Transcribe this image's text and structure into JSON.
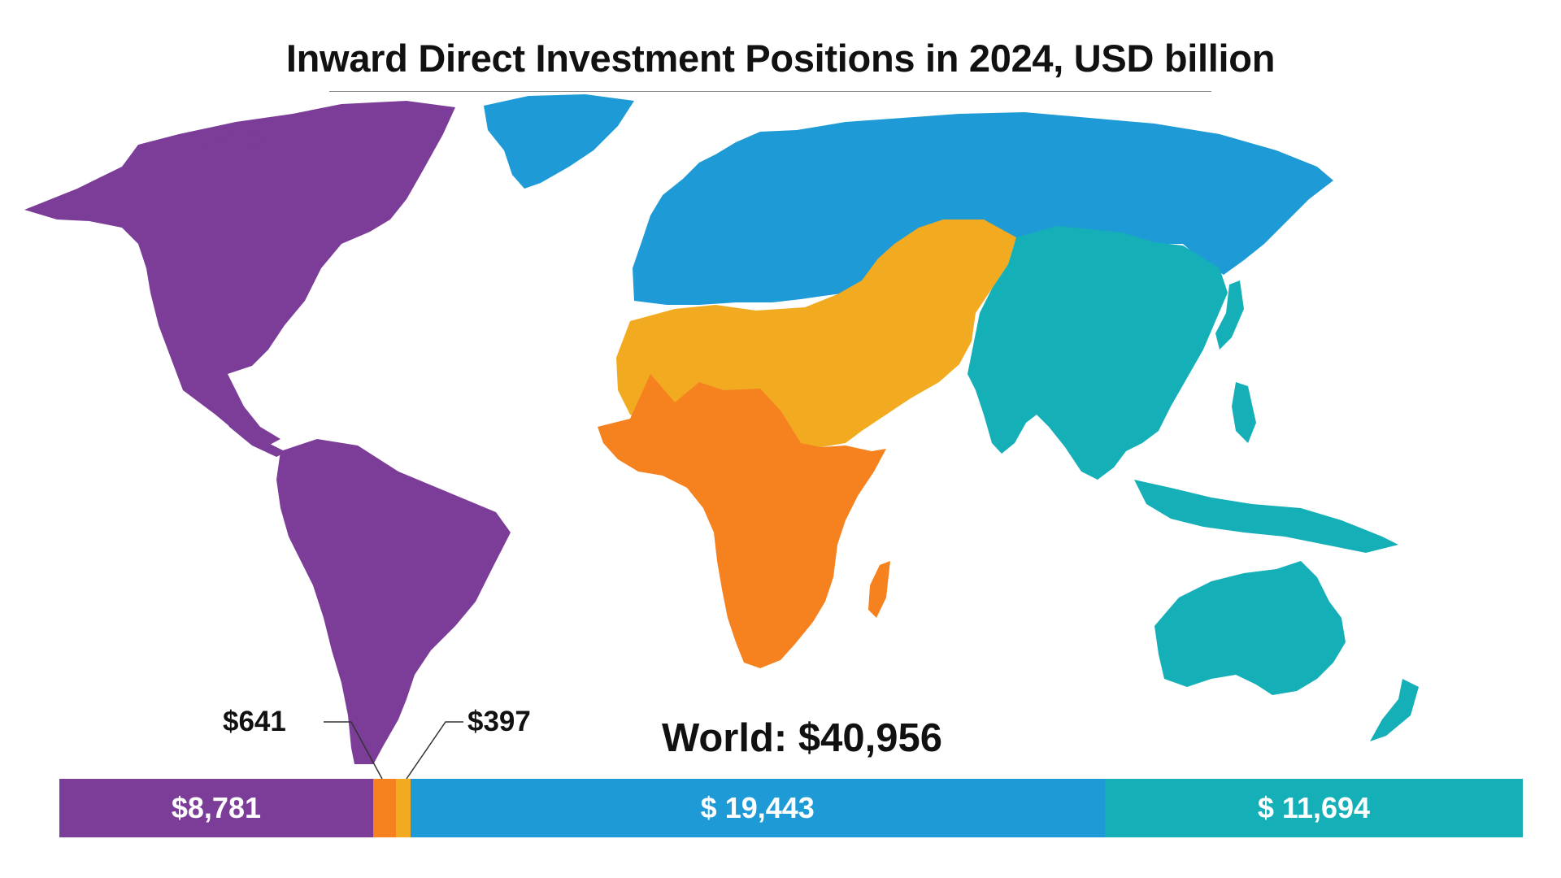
{
  "title": "Inward Direct Investment Positions in 2024, USD billion",
  "world_total_label": "World: $40,956",
  "callouts": {
    "left": "$641",
    "right": "$397"
  },
  "colors": {
    "americas": "#7b3d97",
    "africa": "#f5821f",
    "middle_east_central_asia": "#f2ab21",
    "europe": "#1e9ad6",
    "asia_pacific": "#15afb8"
  },
  "chart_data": {
    "type": "bar",
    "stacked": true,
    "orientation": "horizontal",
    "total": 40956,
    "segments": [
      {
        "value": 8781,
        "label": "$8,781",
        "color": "#7b3d97"
      },
      {
        "value": 641,
        "label": "$641",
        "color": "#f5821f"
      },
      {
        "value": 397,
        "label": "$397",
        "color": "#f2ab21"
      },
      {
        "value": 19443,
        "label": "$ 19,443",
        "color": "#1e9ad6"
      },
      {
        "value": 11694,
        "label": "$ 11,694",
        "color": "#15afb8"
      }
    ]
  }
}
